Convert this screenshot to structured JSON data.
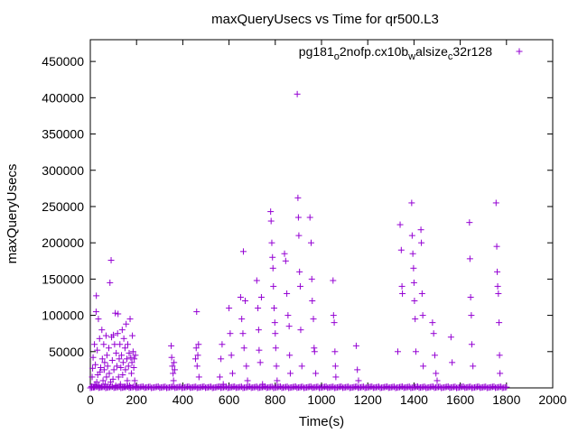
{
  "chart_data": {
    "type": "scatter",
    "title": "maxQueryUsecs vs Time for qr500.L3",
    "xlabel": "Time(s)",
    "ylabel": "maxQueryUsecs",
    "xlim": [
      0,
      2000
    ],
    "ylim": [
      0,
      480000
    ],
    "xticks": [
      0,
      200,
      400,
      600,
      800,
      1000,
      1200,
      1400,
      1600,
      1800,
      2000
    ],
    "yticks": [
      0,
      50000,
      100000,
      150000,
      200000,
      250000,
      300000,
      350000,
      400000,
      450000
    ],
    "grid": false,
    "legend_position": "top-right",
    "marker": "plus",
    "color": "#9400d3",
    "series": [
      {
        "name": "pg181_o2nofp.cx10b_walsize_c32r128",
        "name_parts": [
          "pg181",
          "o",
          "2nofp.cx10b",
          "w",
          "alsize",
          "c",
          "32r128"
        ],
        "points": [
          [
            5,
            2000
          ],
          [
            8,
            15000
          ],
          [
            10,
            27000
          ],
          [
            12,
            42000
          ],
          [
            15,
            1000
          ],
          [
            18,
            60000
          ],
          [
            20,
            5000
          ],
          [
            22,
            32000
          ],
          [
            25,
            105000
          ],
          [
            26,
            127000
          ],
          [
            28,
            8000
          ],
          [
            30,
            52000
          ],
          [
            32,
            18000
          ],
          [
            35,
            95000
          ],
          [
            37,
            3000
          ],
          [
            40,
            68000
          ],
          [
            42,
            22000
          ],
          [
            45,
            28000
          ],
          [
            48,
            2000
          ],
          [
            50,
            80000
          ],
          [
            52,
            40000
          ],
          [
            55,
            10000
          ],
          [
            58,
            60000
          ],
          [
            60,
            25000
          ],
          [
            62,
            35000
          ],
          [
            65,
            5000
          ],
          [
            68,
            72000
          ],
          [
            70,
            15000
          ],
          [
            72,
            45000
          ],
          [
            75,
            30000
          ],
          [
            78,
            2000
          ],
          [
            80,
            55000
          ],
          [
            82,
            20000
          ],
          [
            85,
            145000
          ],
          [
            88,
            8000
          ],
          [
            90,
            176000
          ],
          [
            92,
            70000
          ],
          [
            95,
            38000
          ],
          [
            98,
            12000
          ],
          [
            100,
            73000
          ],
          [
            102,
            25000
          ],
          [
            105,
            60000
          ],
          [
            108,
            103000
          ],
          [
            110,
            3000
          ],
          [
            112,
            48000
          ],
          [
            115,
            30000
          ],
          [
            118,
            75000
          ],
          [
            120,
            102000
          ],
          [
            122,
            15000
          ],
          [
            125,
            40000
          ],
          [
            128,
            60000
          ],
          [
            130,
            5000
          ],
          [
            132,
            28000
          ],
          [
            135,
            45000
          ],
          [
            138,
            80000
          ],
          [
            140,
            18000
          ],
          [
            142,
            35000
          ],
          [
            145,
            68000
          ],
          [
            148,
            2000
          ],
          [
            150,
            55000
          ],
          [
            152,
            25000
          ],
          [
            155,
            88000
          ],
          [
            158,
            40000
          ],
          [
            160,
            10000
          ],
          [
            162,
            60000
          ],
          [
            165,
            30000
          ],
          [
            168,
            48000
          ],
          [
            170,
            3000
          ],
          [
            172,
            95000
          ],
          [
            175,
            42000
          ],
          [
            178,
            20000
          ],
          [
            180,
            35000
          ],
          [
            182,
            72000
          ],
          [
            185,
            50000
          ],
          [
            188,
            28000
          ],
          [
            190,
            40000
          ],
          [
            192,
            10000
          ],
          [
            195,
            45000
          ],
          [
            198,
            2000
          ],
          [
            350,
            58000
          ],
          [
            352,
            42000
          ],
          [
            355,
            30000
          ],
          [
            358,
            20000
          ],
          [
            360,
            10000
          ],
          [
            362,
            35000
          ],
          [
            365,
            25000
          ],
          [
            455,
            40000
          ],
          [
            458,
            55000
          ],
          [
            460,
            105000
          ],
          [
            462,
            30000
          ],
          [
            465,
            45000
          ],
          [
            468,
            60000
          ],
          [
            470,
            15000
          ],
          [
            560,
            15000
          ],
          [
            565,
            40000
          ],
          [
            570,
            60000
          ],
          [
            575,
            5000
          ],
          [
            600,
            110000
          ],
          [
            605,
            75000
          ],
          [
            610,
            45000
          ],
          [
            615,
            20000
          ],
          [
            650,
            125000
          ],
          [
            655,
            95000
          ],
          [
            660,
            75000
          ],
          [
            662,
            188000
          ],
          [
            665,
            55000
          ],
          [
            670,
            120000
          ],
          [
            675,
            30000
          ],
          [
            680,
            10000
          ],
          [
            720,
            148000
          ],
          [
            725,
            110000
          ],
          [
            728,
            80000
          ],
          [
            730,
            52000
          ],
          [
            735,
            35000
          ],
          [
            740,
            125000
          ],
          [
            745,
            5000
          ],
          [
            780,
            243000
          ],
          [
            782,
            230000
          ],
          [
            785,
            200000
          ],
          [
            788,
            180000
          ],
          [
            790,
            165000
          ],
          [
            792,
            140000
          ],
          [
            795,
            110000
          ],
          [
            798,
            90000
          ],
          [
            800,
            75000
          ],
          [
            802,
            55000
          ],
          [
            805,
            30000
          ],
          [
            808,
            10000
          ],
          [
            840,
            185000
          ],
          [
            845,
            175000
          ],
          [
            850,
            130000
          ],
          [
            855,
            100000
          ],
          [
            860,
            85000
          ],
          [
            862,
            45000
          ],
          [
            865,
            20000
          ],
          [
            895,
            405000
          ],
          [
            898,
            262000
          ],
          [
            900,
            235000
          ],
          [
            902,
            210000
          ],
          [
            905,
            160000
          ],
          [
            908,
            140000
          ],
          [
            910,
            80000
          ],
          [
            915,
            30000
          ],
          [
            950,
            235000
          ],
          [
            955,
            200000
          ],
          [
            958,
            150000
          ],
          [
            960,
            120000
          ],
          [
            965,
            95000
          ],
          [
            968,
            55000
          ],
          [
            970,
            50000
          ],
          [
            975,
            20000
          ],
          [
            1050,
            148000
          ],
          [
            1052,
            100000
          ],
          [
            1055,
            90000
          ],
          [
            1058,
            50000
          ],
          [
            1060,
            30000
          ],
          [
            1062,
            15000
          ],
          [
            1150,
            58000
          ],
          [
            1155,
            25000
          ],
          [
            1160,
            10000
          ],
          [
            1330,
            50000
          ],
          [
            1340,
            225000
          ],
          [
            1345,
            190000
          ],
          [
            1348,
            140000
          ],
          [
            1350,
            130000
          ],
          [
            1390,
            255000
          ],
          [
            1392,
            210000
          ],
          [
            1395,
            185000
          ],
          [
            1398,
            165000
          ],
          [
            1400,
            145000
          ],
          [
            1402,
            120000
          ],
          [
            1405,
            95000
          ],
          [
            1408,
            50000
          ],
          [
            1430,
            218000
          ],
          [
            1432,
            200000
          ],
          [
            1435,
            130000
          ],
          [
            1438,
            100000
          ],
          [
            1440,
            30000
          ],
          [
            1480,
            90000
          ],
          [
            1485,
            75000
          ],
          [
            1490,
            45000
          ],
          [
            1495,
            20000
          ],
          [
            1500,
            10000
          ],
          [
            1560,
            70000
          ],
          [
            1565,
            35000
          ],
          [
            1640,
            228000
          ],
          [
            1642,
            178000
          ],
          [
            1645,
            125000
          ],
          [
            1648,
            100000
          ],
          [
            1650,
            60000
          ],
          [
            1655,
            30000
          ],
          [
            1755,
            255000
          ],
          [
            1758,
            195000
          ],
          [
            1760,
            160000
          ],
          [
            1762,
            140000
          ],
          [
            1765,
            130000
          ],
          [
            1768,
            90000
          ],
          [
            1770,
            45000
          ],
          [
            1772,
            20000
          ]
        ]
      }
    ]
  }
}
